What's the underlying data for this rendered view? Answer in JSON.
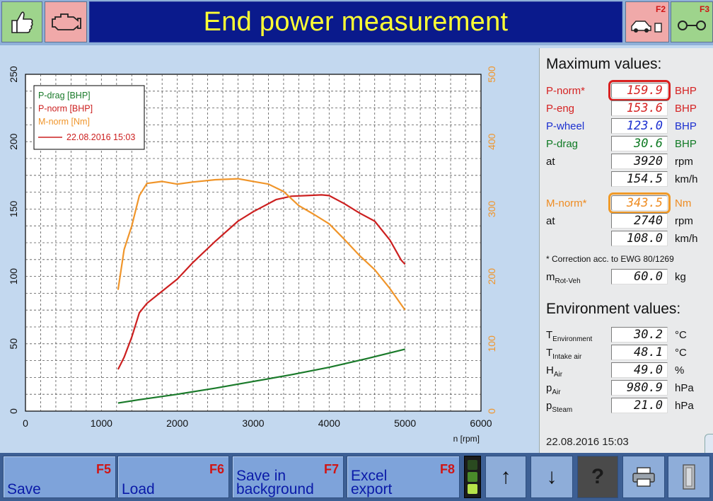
{
  "header": {
    "title": "End power measurement",
    "f2_key": "F2",
    "f3_key": "F3",
    "icons": [
      "thumbs-up-icon",
      "engine-icon",
      "vehicle-on-dyno-icon",
      "roller-icon"
    ]
  },
  "chart_data": {
    "type": "line",
    "xlabel": "n [rpm]",
    "xlim": [
      0,
      6000
    ],
    "xticks": [
      0,
      1000,
      2000,
      3000,
      4000,
      5000,
      6000
    ],
    "ylim_left": [
      0,
      250
    ],
    "yticks_left": [
      0,
      50,
      100,
      150,
      200,
      250
    ],
    "ylim_right": [
      0,
      500
    ],
    "yticks_right": [
      0,
      100,
      200,
      300,
      400,
      500
    ],
    "grid": true,
    "legend": {
      "placement": "top-left",
      "entries": [
        "P-drag [BHP]",
        "P-norm [BHP]",
        "M-norm [Nm]"
      ],
      "line_label": "22.08.2016 15:03"
    },
    "series": [
      {
        "name": "P-drag [BHP]",
        "axis": "left",
        "color": "#1a7a2a",
        "x": [
          1220,
          1500,
          2000,
          2500,
          3000,
          3500,
          4000,
          4500,
          5000
        ],
        "y": [
          6,
          8.5,
          12.5,
          17,
          22,
          27,
          32.5,
          39,
          46
        ]
      },
      {
        "name": "P-norm [BHP]",
        "axis": "left",
        "color": "#cc2020",
        "x": [
          1220,
          1300,
          1400,
          1500,
          1600,
          1800,
          2000,
          2200,
          2500,
          2800,
          3000,
          3300,
          3500,
          3700,
          3900,
          4000,
          4200,
          4400,
          4600,
          4800,
          4950,
          5000
        ],
        "y": [
          31,
          40,
          55,
          73,
          80,
          89,
          98,
          110,
          126,
          141,
          148,
          157,
          159.5,
          160,
          160.5,
          160,
          154,
          147,
          141,
          127,
          112,
          109
        ]
      },
      {
        "name": "M-norm [Nm]",
        "axis": "right",
        "color": "#f0952a",
        "x": [
          1220,
          1300,
          1400,
          1500,
          1600,
          1800,
          2000,
          2200,
          2500,
          2800,
          3000,
          3200,
          3400,
          3600,
          3800,
          4000,
          4200,
          4400,
          4600,
          4800,
          5000
        ],
        "y": [
          180,
          240,
          275,
          320,
          338,
          341,
          337,
          340,
          343.5,
          345,
          341,
          337,
          326,
          305,
          292,
          278,
          255,
          231,
          210,
          182,
          150
        ]
      }
    ]
  },
  "maximum": {
    "heading": "Maximum values:",
    "rows": [
      {
        "label": "P-norm*",
        "value": "159.9",
        "unit": "BHP",
        "color": "#d52222"
      },
      {
        "label": "P-eng",
        "value": "153.6",
        "unit": "BHP",
        "color": "#d52222"
      },
      {
        "label": "P-wheel",
        "value": "123.0",
        "unit": "BHP",
        "color": "#1b2fd0"
      },
      {
        "label": "P-drag",
        "value": "30.6",
        "unit": "BHP",
        "color": "#0f7a24"
      },
      {
        "label": "at",
        "value": "3920",
        "unit": "rpm"
      },
      {
        "label": "",
        "value": "154.5",
        "unit": "km/h"
      },
      {
        "label": "M-norm*",
        "value": "343.5",
        "unit": "Nm",
        "color": "#ee8c22"
      },
      {
        "label": "at",
        "value": "2740",
        "unit": "rpm"
      },
      {
        "label": "",
        "value": "108.0",
        "unit": "km/h"
      }
    ],
    "footnote": "* Correction acc. to EWG 80/1269",
    "mrot": {
      "label_main": "m",
      "label_sub": "Rot-Veh",
      "value": "60.0",
      "unit": "kg"
    }
  },
  "environment": {
    "heading": "Environment values:",
    "rows": [
      {
        "label_main": "T",
        "label_sub": "Environment",
        "value": "30.2",
        "unit": "°C"
      },
      {
        "label_main": "T",
        "label_sub": "Intake air",
        "value": "48.1",
        "unit": "°C"
      },
      {
        "label_main": "H",
        "label_sub": "Air",
        "value": "49.0",
        "unit": "%"
      },
      {
        "label_main": "p",
        "label_sub": "Air",
        "value": "980.9",
        "unit": "hPa"
      },
      {
        "label_main": "p",
        "label_sub": "Steam",
        "value": "21.0",
        "unit": "hPa"
      }
    ]
  },
  "timestamp": "22.08.2016   15:03",
  "toolbar": {
    "save": {
      "label": "Save",
      "key": "F5"
    },
    "load": {
      "label": "Load",
      "key": "F6"
    },
    "save_bg": {
      "line1": "Save in",
      "line2": "background",
      "key": "F7"
    },
    "excel": {
      "line1": "Excel",
      "line2": "export",
      "key": "F8"
    },
    "arrow_up": "↑",
    "arrow_down": "↓",
    "help": "?",
    "icons": [
      "traffic-light-indicator",
      "arrow-up-icon",
      "arrow-down-icon",
      "help-icon",
      "printer-icon",
      "exit-door-icon"
    ]
  }
}
